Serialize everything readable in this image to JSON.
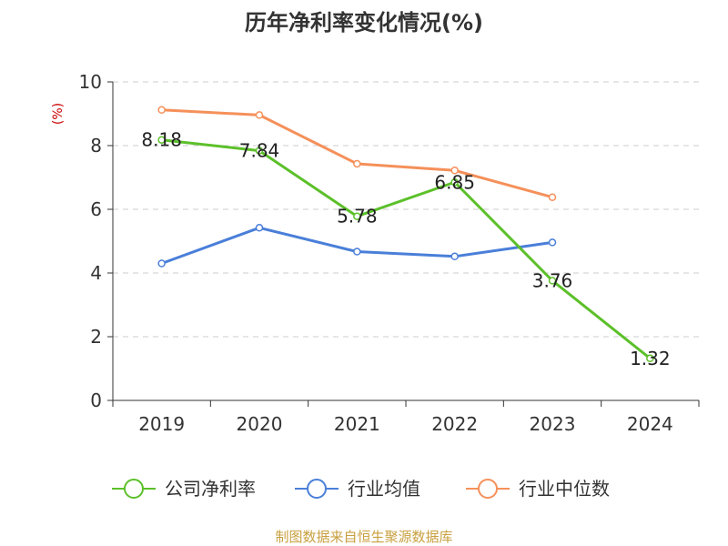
{
  "chart_data": {
    "type": "line",
    "title": "历年净利率变化情况(%)",
    "ylabel": "(%)",
    "xlabel": "",
    "categories": [
      "2019",
      "2020",
      "2021",
      "2022",
      "2023",
      "2024"
    ],
    "ylim": [
      0,
      10
    ],
    "yticks": [
      0,
      2,
      4,
      6,
      8,
      10
    ],
    "grid": true,
    "legend_position": "bottom",
    "series": [
      {
        "name": "公司净利率",
        "color": "#5cc02a",
        "values": [
          8.18,
          7.84,
          5.78,
          6.85,
          3.76,
          1.32
        ],
        "labels": [
          "8.18",
          "7.84",
          "5.78",
          "6.85",
          "3.76",
          "1.32"
        ]
      },
      {
        "name": "行业均值",
        "color": "#4a7fd9",
        "values": [
          4.3,
          5.42,
          4.67,
          4.52,
          4.96,
          null
        ]
      },
      {
        "name": "行业中位数",
        "color": "#f5905a",
        "values": [
          9.12,
          8.96,
          7.43,
          7.22,
          6.38,
          null
        ]
      }
    ]
  },
  "colors": {
    "unit_label": "#cc0000",
    "source": "#c8a040",
    "axis": "#333333",
    "grid": "#cccccc"
  },
  "source_text": "制图数据来自恒生聚源数据库"
}
